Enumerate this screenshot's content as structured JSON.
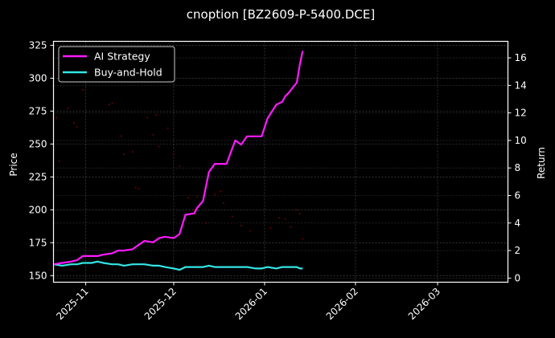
{
  "title": "cnoption [BZ2609-P-5400.DCE]",
  "colors": {
    "background": "#000000",
    "ai_strategy": "#ff1aff",
    "buy_and_hold": "#33e6e6",
    "price_dots": "#8b0000",
    "axis": "#ffffff",
    "grid": "#555555"
  },
  "chart_data": {
    "type": "line",
    "title": "cnoption [BZ2609-P-5400.DCE]",
    "xlabel": "",
    "ylabel_left": "Price",
    "ylabel_right": "Return",
    "ylim_left": [
      145,
      328
    ],
    "ylim_right": [
      -0.3,
      17.2
    ],
    "xlim": [
      "2025-10-21",
      "2026-03-25"
    ],
    "yticks_left": [
      150,
      175,
      200,
      225,
      250,
      275,
      300,
      325
    ],
    "yticks_right": [
      0,
      2,
      4,
      6,
      8,
      10,
      12,
      14,
      16
    ],
    "xticks": [
      "2025-11",
      "2025-12",
      "2026-01",
      "2026-02",
      "2026-03"
    ],
    "grid": true,
    "legend_position": "upper left",
    "legend": [
      "AI Strategy",
      "Buy-and-Hold"
    ],
    "x": [
      "2025-10-21",
      "2025-10-24",
      "2025-10-27",
      "2025-10-29",
      "2025-10-31",
      "2025-11-03",
      "2025-11-05",
      "2025-11-07",
      "2025-11-10",
      "2025-11-12",
      "2025-11-14",
      "2025-11-17",
      "2025-11-19",
      "2025-11-21",
      "2025-11-24",
      "2025-11-26",
      "2025-11-28",
      "2025-12-01",
      "2025-12-03",
      "2025-12-05",
      "2025-12-08",
      "2025-12-09",
      "2025-12-11",
      "2025-12-13",
      "2025-12-15",
      "2025-12-17",
      "2025-12-19",
      "2025-12-22",
      "2025-12-24",
      "2025-12-26",
      "2025-12-29",
      "2025-12-31",
      "2026-01-02",
      "2026-01-05",
      "2026-01-07",
      "2026-01-08",
      "2026-01-09",
      "2026-01-12",
      "2026-01-13",
      "2026-01-14"
    ],
    "series": [
      {
        "name": "AI Strategy",
        "axis": "right",
        "values": [
          1.0,
          1.1,
          1.2,
          1.3,
          1.6,
          1.6,
          1.6,
          1.7,
          1.8,
          2.0,
          2.0,
          2.1,
          2.4,
          2.7,
          2.6,
          2.9,
          3.0,
          2.9,
          3.2,
          4.6,
          4.7,
          5.1,
          5.6,
          7.7,
          8.3,
          8.3,
          8.3,
          10.0,
          9.7,
          10.3,
          10.3,
          10.3,
          11.6,
          12.6,
          12.8,
          13.2,
          13.4,
          14.2,
          15.5,
          16.5
        ]
      },
      {
        "name": "Buy-and-Hold",
        "axis": "right",
        "values": [
          1.0,
          0.9,
          1.0,
          1.0,
          1.1,
          1.1,
          1.2,
          1.1,
          1.0,
          1.0,
          0.9,
          1.0,
          1.0,
          1.0,
          0.9,
          0.9,
          0.8,
          0.7,
          0.6,
          0.8,
          0.8,
          0.8,
          0.8,
          0.9,
          0.8,
          0.8,
          0.8,
          0.8,
          0.8,
          0.8,
          0.7,
          0.7,
          0.8,
          0.7,
          0.8,
          0.8,
          0.8,
          0.8,
          0.7,
          0.7
        ]
      }
    ],
    "price_scatter": {
      "name": "Price",
      "axis": "left",
      "points": [
        [
          "2025-10-22",
          270
        ],
        [
          "2025-10-23",
          237
        ],
        [
          "2025-10-26",
          277
        ],
        [
          "2025-10-28",
          266
        ],
        [
          "2025-10-29",
          263
        ],
        [
          "2025-10-31",
          291
        ],
        [
          "2025-11-09",
          280
        ],
        [
          "2025-11-10",
          281
        ],
        [
          "2025-11-13",
          256
        ],
        [
          "2025-11-14",
          242
        ],
        [
          "2025-11-17",
          244
        ],
        [
          "2025-11-18",
          217
        ],
        [
          "2025-11-19",
          216
        ],
        [
          "2025-11-22",
          270
        ],
        [
          "2025-11-24",
          257
        ],
        [
          "2025-11-25",
          272
        ],
        [
          "2025-11-26",
          248
        ],
        [
          "2025-11-29",
          262
        ],
        [
          "2025-12-01",
          242
        ],
        [
          "2025-12-03",
          233
        ],
        [
          "2025-12-06",
          209
        ],
        [
          "2025-12-08",
          200
        ],
        [
          "2025-12-09",
          210
        ],
        [
          "2025-12-12",
          190
        ],
        [
          "2025-12-15",
          212
        ],
        [
          "2025-12-17",
          214
        ],
        [
          "2025-12-18",
          205
        ],
        [
          "2025-12-21",
          195
        ],
        [
          "2025-12-24",
          188
        ],
        [
          "2025-12-27",
          184
        ],
        [
          "2026-01-03",
          186
        ],
        [
          "2026-01-06",
          194
        ],
        [
          "2026-01-08",
          193
        ],
        [
          "2026-01-10",
          187
        ],
        [
          "2026-01-12",
          200
        ],
        [
          "2026-01-13",
          197
        ],
        [
          "2026-01-14",
          178
        ]
      ]
    }
  }
}
